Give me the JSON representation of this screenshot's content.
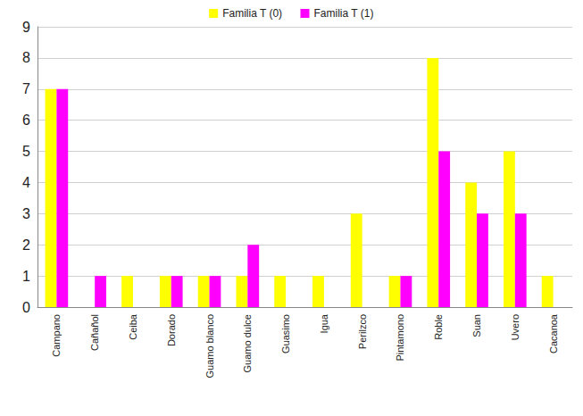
{
  "chart_data": {
    "type": "bar",
    "categories": [
      "Campano",
      "Cañañol",
      "Ceiba",
      "Dorado",
      "Guamo blanco",
      "Guamo dulce",
      "Guasimo",
      "Igua",
      "Perilzco",
      "Pintamono",
      "Roble",
      "Suan",
      "Uvero",
      "Cacanoa"
    ],
    "series": [
      {
        "name": "Familia T (0)",
        "color": "#ffff00",
        "values": [
          7,
          0,
          1,
          1,
          1,
          1,
          1,
          1,
          3,
          1,
          8,
          4,
          5,
          1
        ]
      },
      {
        "name": "Familia T (1)",
        "color": "#ff00ff",
        "values": [
          7,
          1,
          0,
          1,
          1,
          2,
          0,
          0,
          0,
          1,
          5,
          3,
          3,
          0
        ]
      }
    ],
    "ylim": [
      0,
      9
    ],
    "yticks": [
      0,
      1,
      2,
      3,
      4,
      5,
      6,
      7,
      8,
      9
    ],
    "grid": true,
    "legend": "top"
  }
}
